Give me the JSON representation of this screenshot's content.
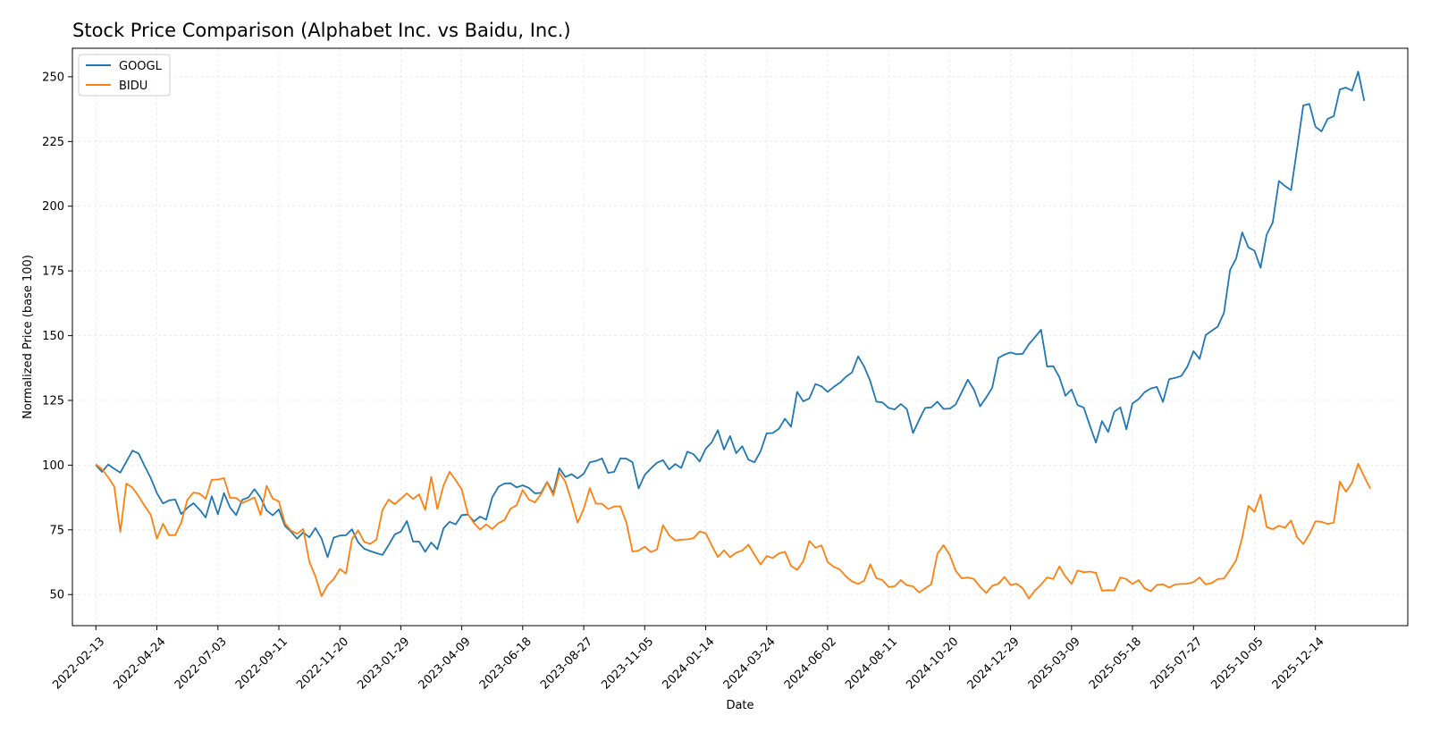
{
  "chart_data": {
    "type": "line",
    "title": "Stock Price Comparison (Alphabet Inc. vs Baidu, Inc.)",
    "xlabel": "Date",
    "ylabel": "Normalized Price (base 100)",
    "ylim": [
      38,
      261
    ],
    "yticks": [
      50,
      75,
      100,
      125,
      150,
      175,
      200,
      225,
      250
    ],
    "xrange": [
      "2022-01-17",
      "2026-03-30"
    ],
    "xticks": [
      "2022-02-13",
      "2022-04-24",
      "2022-07-03",
      "2022-09-11",
      "2022-11-20",
      "2023-01-29",
      "2023-04-09",
      "2023-06-18",
      "2023-08-27",
      "2023-11-05",
      "2024-01-14",
      "2024-03-24",
      "2024-06-02",
      "2024-08-11",
      "2024-10-20",
      "2024-12-29",
      "2025-03-09",
      "2025-05-18",
      "2025-07-27",
      "2025-10-05",
      "2025-12-14"
    ],
    "grid": true,
    "legend": "upper-left",
    "x_start": "2022-02-13",
    "x_step_days": 7,
    "series": [
      {
        "name": "GOOGL",
        "color": "#1f77b4",
        "values": [
          100.0,
          97.4,
          100.2,
          98.6,
          97.1,
          101.3,
          105.6,
          104.5,
          99.6,
          95.0,
          89.2,
          85.2,
          86.4,
          86.7,
          81.1,
          83.5,
          85.3,
          82.8,
          79.8,
          88.0,
          81.0,
          89.2,
          83.6,
          80.7,
          86.6,
          87.5,
          90.7,
          87.4,
          82.5,
          80.6,
          82.9,
          76.5,
          74.3,
          71.6,
          74.0,
          72.1,
          75.7,
          71.7,
          64.4,
          72.0,
          72.8,
          72.9,
          75.2,
          70.2,
          67.7,
          66.8,
          66.0,
          65.3,
          69.1,
          73.2,
          74.3,
          78.4,
          70.5,
          70.5,
          66.5,
          70.1,
          67.5,
          75.6,
          78.1,
          77.1,
          80.7,
          80.9,
          78.3,
          80.1,
          78.9,
          87.5,
          91.6,
          92.9,
          93.0,
          91.4,
          92.2,
          91.2,
          89.1,
          89.3,
          93.5,
          89.2,
          98.8,
          95.4,
          96.5,
          94.9,
          96.7,
          101.1,
          101.6,
          102.6,
          97.0,
          97.4,
          102.6,
          102.5,
          101.1,
          91.0,
          96.2,
          98.7,
          100.9,
          101.9,
          98.3,
          100.4,
          98.9,
          105.2,
          104.2,
          101.4,
          106.3,
          108.8,
          113.5,
          106.0,
          111.2,
          104.6,
          107.3,
          102.1,
          101.1,
          105.3,
          112.3,
          112.4,
          114.0,
          117.9,
          114.8,
          128.3,
          124.6,
          125.8,
          131.3,
          130.4,
          128.3,
          130.2,
          131.8,
          134.1,
          135.8,
          142.0,
          138.0,
          132.4,
          124.5,
          124.2,
          122.1,
          121.5,
          123.6,
          121.6,
          112.4,
          117.5,
          122.1,
          122.3,
          124.5,
          121.7,
          121.8,
          123.4,
          128.2,
          133.0,
          129.1,
          122.7,
          126.1,
          129.9,
          141.4,
          142.7,
          143.5,
          142.8,
          143.0,
          146.7,
          149.4,
          152.3,
          138.1,
          138.2,
          134.0,
          126.8,
          129.2,
          123.2,
          122.2,
          115.3,
          108.7,
          117.0,
          112.8,
          120.6,
          122.3,
          113.8,
          123.8,
          125.5,
          128.2,
          129.6,
          130.2,
          124.4,
          133.2,
          133.7,
          134.4,
          138.0,
          144.0,
          141.0,
          150.2,
          151.9,
          153.5,
          158.9,
          175.4,
          179.8,
          189.9,
          184.1,
          182.8,
          176.2,
          189.0,
          193.7,
          209.7,
          207.8,
          206.2,
          222.3,
          238.9,
          239.5,
          230.7,
          228.9,
          233.7,
          234.8,
          245.1,
          245.8,
          244.6,
          252.0,
          240.7
        ]
      },
      {
        "name": "BIDU",
        "color": "#ff7f0e",
        "values": [
          100.3,
          98.4,
          95.3,
          91.7,
          74.2,
          92.9,
          91.3,
          88.0,
          84.2,
          80.8,
          71.6,
          77.4,
          72.9,
          73.0,
          77.8,
          86.6,
          89.4,
          89.0,
          87.0,
          94.4,
          94.4,
          95.0,
          87.3,
          87.3,
          85.4,
          86.4,
          87.5,
          80.7,
          92.0,
          87.1,
          86.0,
          77.5,
          74.7,
          73.5,
          75.3,
          62.7,
          57.0,
          49.4,
          53.6,
          56.0,
          59.9,
          58.1,
          71.4,
          74.8,
          70.3,
          69.6,
          71.2,
          82.7,
          86.7,
          84.9,
          87.0,
          89.1,
          86.9,
          88.7,
          82.7,
          95.4,
          83.1,
          92.1,
          97.4,
          94.2,
          90.6,
          81.1,
          77.6,
          75.1,
          77.1,
          75.3,
          77.6,
          78.8,
          83.2,
          84.5,
          90.4,
          86.7,
          85.6,
          88.8,
          93.4,
          88.3,
          97.1,
          93.5,
          86.1,
          77.8,
          83.1,
          91.1,
          85.1,
          85.1,
          83.0,
          84.0,
          84.1,
          77.8,
          66.6,
          67.0,
          68.5,
          66.4,
          67.4,
          76.8,
          72.9,
          70.9,
          71.2,
          71.3,
          71.8,
          74.4,
          73.7,
          69.0,
          64.5,
          67.1,
          64.4,
          66.2,
          67.0,
          69.3,
          65.4,
          61.6,
          64.9,
          64.1,
          65.9,
          66.5,
          61.1,
          59.5,
          62.9,
          70.7,
          68.1,
          69.0,
          62.6,
          60.7,
          59.7,
          57.0,
          55.1,
          54.1,
          55.4,
          61.7,
          56.3,
          55.6,
          52.9,
          53.2,
          55.6,
          53.6,
          53.2,
          50.8,
          52.4,
          54.0,
          65.7,
          69.1,
          65.4,
          59.2,
          56.3,
          56.6,
          56.0,
          53.0,
          50.6,
          53.4,
          54.2,
          56.8,
          53.7,
          54.2,
          52.4,
          48.5,
          51.6,
          53.8,
          56.6,
          56.0,
          60.9,
          57.0,
          54.1,
          59.3,
          58.6,
          58.9,
          58.4,
          51.5,
          51.7,
          51.6,
          56.6,
          56.0,
          54.1,
          55.6,
          52.4,
          51.3,
          53.7,
          54.0,
          52.7,
          53.9,
          54.1,
          54.2,
          54.8,
          56.6,
          53.9,
          54.5,
          56.0,
          56.2,
          59.6,
          63.3,
          72.0,
          84.3,
          81.9,
          88.6,
          76.1,
          75.2,
          76.6,
          75.8,
          78.6,
          72.1,
          69.5,
          73.3,
          78.3,
          78.1,
          77.3,
          77.8,
          93.6,
          89.7,
          93.2,
          100.5,
          95.5,
          91.0
        ]
      }
    ]
  }
}
